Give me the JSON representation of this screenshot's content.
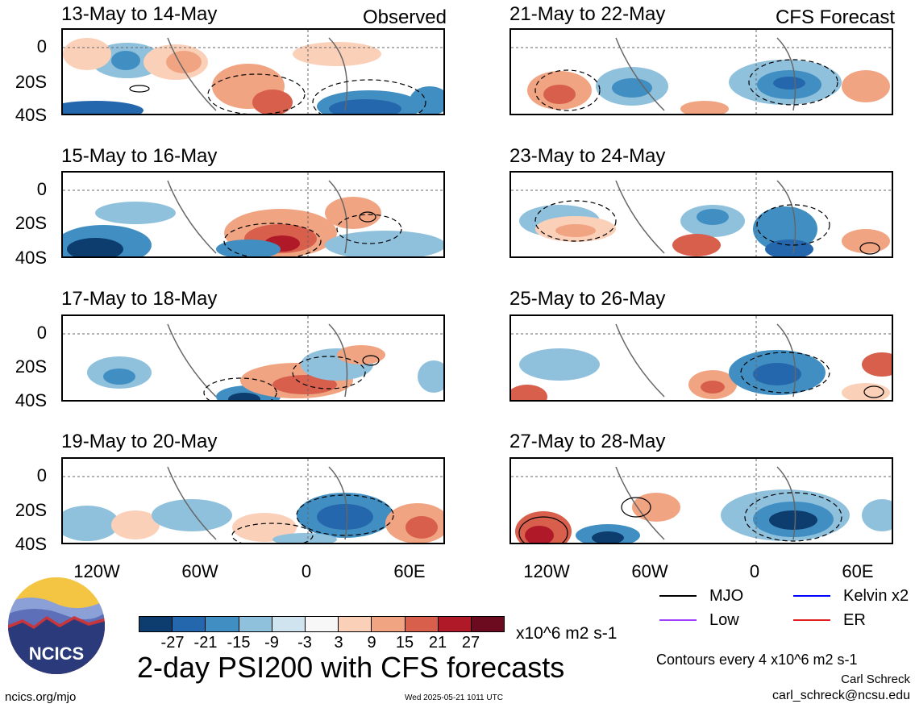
{
  "header": {
    "observed_label": "Observed",
    "forecast_label": "CFS Forecast"
  },
  "panels": {
    "left": [
      {
        "title": "13-May to 14-May"
      },
      {
        "title": "15-May to 16-May"
      },
      {
        "title": "17-May to 18-May"
      },
      {
        "title": "19-May to 20-May"
      }
    ],
    "right": [
      {
        "title": "21-May to 22-May"
      },
      {
        "title": "23-May to 24-May"
      },
      {
        "title": "25-May to 26-May"
      },
      {
        "title": "27-May to 28-May"
      }
    ]
  },
  "axes": {
    "y_ticks": [
      "0",
      "20S",
      "40S"
    ],
    "x_ticks": [
      "120W",
      "60W",
      "0",
      "60E"
    ]
  },
  "colorbar": {
    "colors": [
      "#0c3d6e",
      "#2567ad",
      "#418fc2",
      "#8fc1dd",
      "#d0e4f0",
      "#f7f7f7",
      "#fbd0b9",
      "#f1a482",
      "#d85f4c",
      "#b01a28",
      "#6c0a1f"
    ],
    "tick_labels": [
      "-27",
      "-21",
      "-15",
      "-9",
      "-3",
      "3",
      "9",
      "15",
      "21",
      "27"
    ],
    "units": "x10^6 m2 s-1"
  },
  "title": "2-day PSI200 with CFS forecasts",
  "legend": [
    {
      "label": "MJO",
      "color": "#000000"
    },
    {
      "label": "Kelvin x2",
      "color": "#0000ff"
    },
    {
      "label": "Low",
      "color": "#a040ff"
    },
    {
      "label": "ER",
      "color": "#e02020"
    }
  ],
  "contours_note": "Contours every 4 x10^6 m2 s-1",
  "footer": {
    "logo_text": "NCICS",
    "url": "ncics.org/mjo",
    "timestamp": "Wed 2025-05-21 1011 UTC",
    "author": "Carl Schreck",
    "email": "carl_schreck@ncsu.edu"
  }
}
